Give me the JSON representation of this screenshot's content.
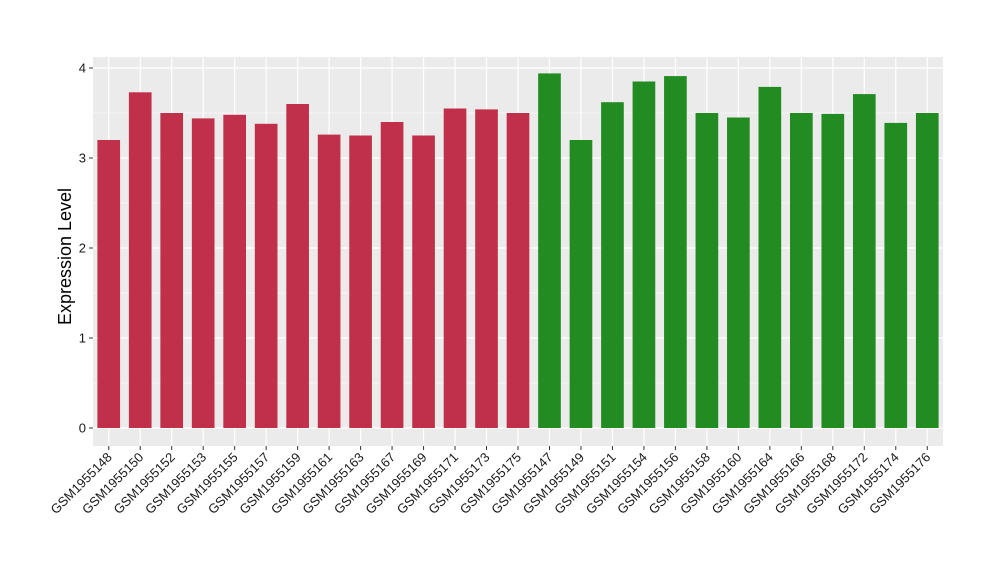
{
  "chart_data": {
    "type": "bar",
    "title": "",
    "xlabel": "",
    "ylabel": "Expression Level",
    "ylim": [
      0,
      4.08
    ],
    "yticks": [
      0,
      1,
      2,
      3,
      4
    ],
    "grid": true,
    "background": "#ebebeb",
    "gridline_color": "#ffffff",
    "group_colors": [
      "#c1304a",
      "#228b22"
    ],
    "categories": [
      "GSM1955148",
      "GSM1955150",
      "GSM1955152",
      "GSM1955153",
      "GSM1955155",
      "GSM1955157",
      "GSM1955159",
      "GSM1955161",
      "GSM1955163",
      "GSM1955167",
      "GSM1955169",
      "GSM1955171",
      "GSM1955173",
      "GSM1955175",
      "GSM1955147",
      "GSM1955149",
      "GSM1955151",
      "GSM1955154",
      "GSM1955156",
      "GSM1955158",
      "GSM1955160",
      "GSM1955164",
      "GSM1955166",
      "GSM1955168",
      "GSM1955172",
      "GSM1955174",
      "GSM1955176"
    ],
    "values": [
      3.2,
      3.73,
      3.5,
      3.44,
      3.48,
      3.38,
      3.6,
      3.26,
      3.25,
      3.4,
      3.25,
      3.55,
      3.54,
      3.5,
      3.94,
      3.2,
      3.62,
      3.85,
      3.91,
      3.5,
      3.45,
      3.79,
      3.5,
      3.49,
      3.71,
      3.39,
      3.5
    ],
    "groups": [
      0,
      0,
      0,
      0,
      0,
      0,
      0,
      0,
      0,
      0,
      0,
      0,
      0,
      0,
      1,
      1,
      1,
      1,
      1,
      1,
      1,
      1,
      1,
      1,
      1,
      1,
      1
    ]
  }
}
